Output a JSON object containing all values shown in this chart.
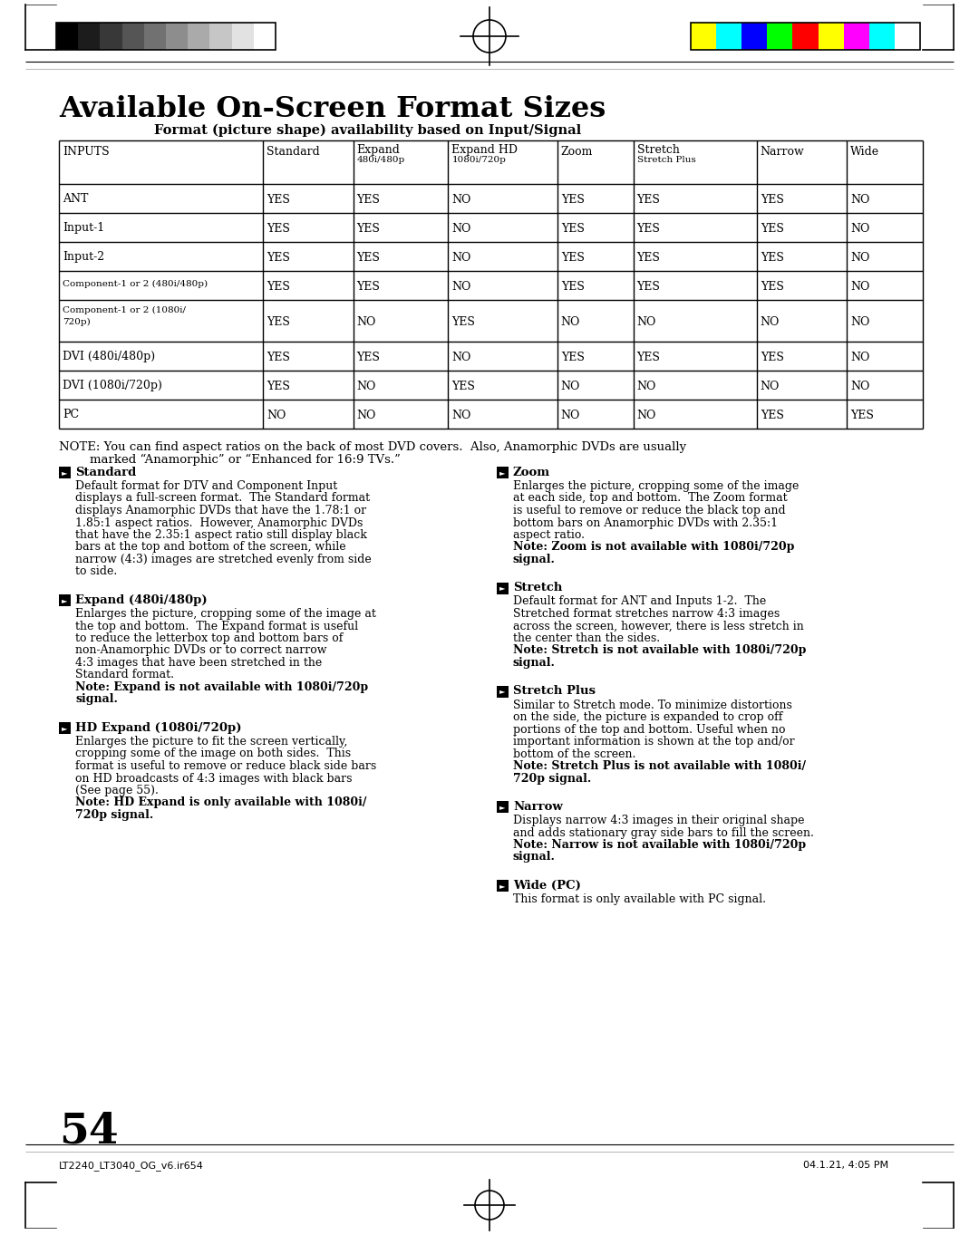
{
  "title": "Available On-Screen Format Sizes",
  "subtitle": "Format (picture shape) availability based on Input/Signal",
  "bg_color": "#ffffff",
  "page_number": "54",
  "footer_left": "LT2240_LT3040_OG_v6.ir654",
  "footer_right": "04.1.21, 4:05 PM",
  "table_headers": [
    "INPUTS",
    "Standard",
    "Expand\n480i/480p",
    "Expand HD\n1080i/720p",
    "Zoom",
    "Stretch\nStretch Plus",
    "Narrow",
    "Wide"
  ],
  "table_rows": [
    [
      "ANT",
      "YES",
      "YES",
      "NO",
      "YES",
      "YES",
      "YES",
      "NO"
    ],
    [
      "Input-1",
      "YES",
      "YES",
      "NO",
      "YES",
      "YES",
      "YES",
      "NO"
    ],
    [
      "Input-2",
      "YES",
      "YES",
      "NO",
      "YES",
      "YES",
      "YES",
      "NO"
    ],
    [
      "Component-1 or 2 (480i/480p)",
      "YES",
      "YES",
      "NO",
      "YES",
      "YES",
      "YES",
      "NO"
    ],
    [
      "Component-1 or 2 (1080i/\n720p)",
      "YES",
      "NO",
      "YES",
      "NO",
      "NO",
      "NO",
      "NO"
    ],
    [
      "DVI (480i/480p)",
      "YES",
      "YES",
      "NO",
      "YES",
      "YES",
      "YES",
      "NO"
    ],
    [
      "DVI (1080i/720p)",
      "YES",
      "NO",
      "YES",
      "NO",
      "NO",
      "NO",
      "NO"
    ],
    [
      "PC",
      "NO",
      "NO",
      "NO",
      "NO",
      "NO",
      "YES",
      "YES"
    ]
  ],
  "note_line1": "NOTE: You can find aspect ratios on the back of most DVD covers.  Also, Anamorphic DVDs are usually",
  "note_line2": "        marked “Anamorphic” or “Enhanced for 16:9 TVs.”",
  "descriptions_left": [
    {
      "title": "Standard",
      "body": [
        "Default format for DTV and Component Input",
        "displays a full-screen format.  The Standard format",
        "displays Anamorphic DVDs that have the 1.78:1 or",
        "1.85:1 aspect ratios.  However, Anamorphic DVDs",
        "that have the 2.35:1 aspect ratio still display black",
        "bars at the top and bottom of the screen, while",
        "narrow (4:3) images are stretched evenly from side",
        "to side."
      ],
      "note": []
    },
    {
      "title": "Expand (480i/480p)",
      "body": [
        "Enlarges the picture, cropping some of the image at",
        "the top and bottom.  The Expand format is useful",
        "to reduce the letterbox top and bottom bars of",
        "non-Anamorphic DVDs or to correct narrow",
        "4:3 images that have been stretched in the",
        "Standard format."
      ],
      "note": [
        "Note: Expand is not available with 1080i/720p",
        "signal."
      ]
    },
    {
      "title": "HD Expand (1080i/720p)",
      "body": [
        "Enlarges the picture to fit the screen vertically,",
        "cropping some of the image on both sides.  This",
        "format is useful to remove or reduce black side bars",
        "on HD broadcasts of 4:3 images with black bars",
        "(See page 55)."
      ],
      "note": [
        "Note: HD Expand is only available with 1080i/",
        "720p signal."
      ]
    }
  ],
  "descriptions_right": [
    {
      "title": "Zoom",
      "body": [
        "Enlarges the picture, cropping some of the image",
        "at each side, top and bottom.  The Zoom format",
        "is useful to remove or reduce the black top and",
        "bottom bars on Anamorphic DVDs with 2.35:1",
        "aspect ratio."
      ],
      "note": [
        "Note: Zoom is not available with 1080i/720p",
        "signal."
      ]
    },
    {
      "title": "Stretch",
      "body": [
        "Default format for ANT and Inputs 1-2.  The",
        "Stretched format stretches narrow 4:3 images",
        "across the screen, however, there is less stretch in",
        "the center than the sides."
      ],
      "note": [
        "Note: Stretch is not available with 1080i/720p",
        "signal."
      ]
    },
    {
      "title": "Stretch Plus",
      "body": [
        "Similar to Stretch mode. To minimize distortions",
        "on the side, the picture is expanded to crop off",
        "portions of the top and bottom. Useful when no",
        "important information is shown at the top and/or",
        "bottom of the screen."
      ],
      "note": [
        "Note: Stretch Plus is not available with 1080i/",
        "720p signal."
      ]
    },
    {
      "title": "Narrow",
      "body": [
        "Displays narrow 4:3 images in their original shape",
        "and adds stationary gray side bars to fill the screen."
      ],
      "note": [
        "Note: Narrow is not available with 1080i/720p",
        "signal."
      ]
    },
    {
      "title": "Wide (PC)",
      "body": [
        "This format is only available with PC signal."
      ],
      "note": []
    }
  ],
  "grayscale_colors": [
    "#000000",
    "#1c1c1c",
    "#383838",
    "#555555",
    "#717171",
    "#8d8d8d",
    "#aaaaaa",
    "#c6c6c6",
    "#e2e2e2",
    "#ffffff"
  ],
  "color_bar_colors": [
    "#ffff00",
    "#00ffff",
    "#0000ff",
    "#00ff00",
    "#ff0000",
    "#ffff00",
    "#ff00ff",
    "#00ffff",
    "#ffffff"
  ]
}
